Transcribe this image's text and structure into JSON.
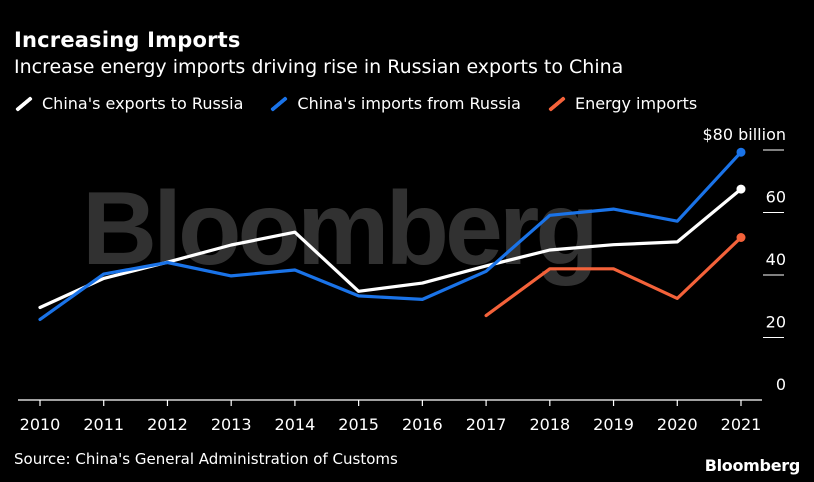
{
  "header": {
    "title": "Increasing Imports",
    "subtitle": "Increase energy imports driving rise in Russian exports to China"
  },
  "legend": [
    {
      "label": "China's exports to Russia",
      "color": "#ffffff"
    },
    {
      "label": "China's imports from Russia",
      "color": "#1a73e8"
    },
    {
      "label": "Energy imports",
      "color": "#f4623a"
    }
  ],
  "footer": {
    "source": "Source: China's General Administration of Customs",
    "brand": "Bloomberg"
  },
  "watermark": "Bloomberg",
  "chart_data": {
    "type": "line",
    "x": [
      "2010",
      "2011",
      "2012",
      "2013",
      "2014",
      "2015",
      "2016",
      "2017",
      "2018",
      "2019",
      "2020",
      "2021"
    ],
    "yticks": [
      "0",
      "20",
      "40",
      "60",
      "$80 billion"
    ],
    "ylim": [
      0,
      80
    ],
    "grid": false,
    "legend_position": "top-left",
    "series": [
      {
        "name": "China's exports to Russia",
        "color": "#ffffff",
        "values": [
          29.6,
          38.9,
          44.1,
          49.6,
          53.7,
          34.8,
          37.4,
          42.9,
          48.0,
          49.7,
          50.6,
          67.5
        ]
      },
      {
        "name": "China's imports from Russia",
        "color": "#1a73e8",
        "values": [
          25.8,
          40.3,
          44.0,
          39.7,
          41.6,
          33.3,
          32.2,
          41.2,
          59.1,
          61.1,
          57.2,
          79.3
        ]
      },
      {
        "name": "Energy imports",
        "color": "#f4623a",
        "values": [
          null,
          null,
          null,
          null,
          null,
          null,
          null,
          27.0,
          42.0,
          42.0,
          32.5,
          52.0
        ]
      }
    ]
  }
}
